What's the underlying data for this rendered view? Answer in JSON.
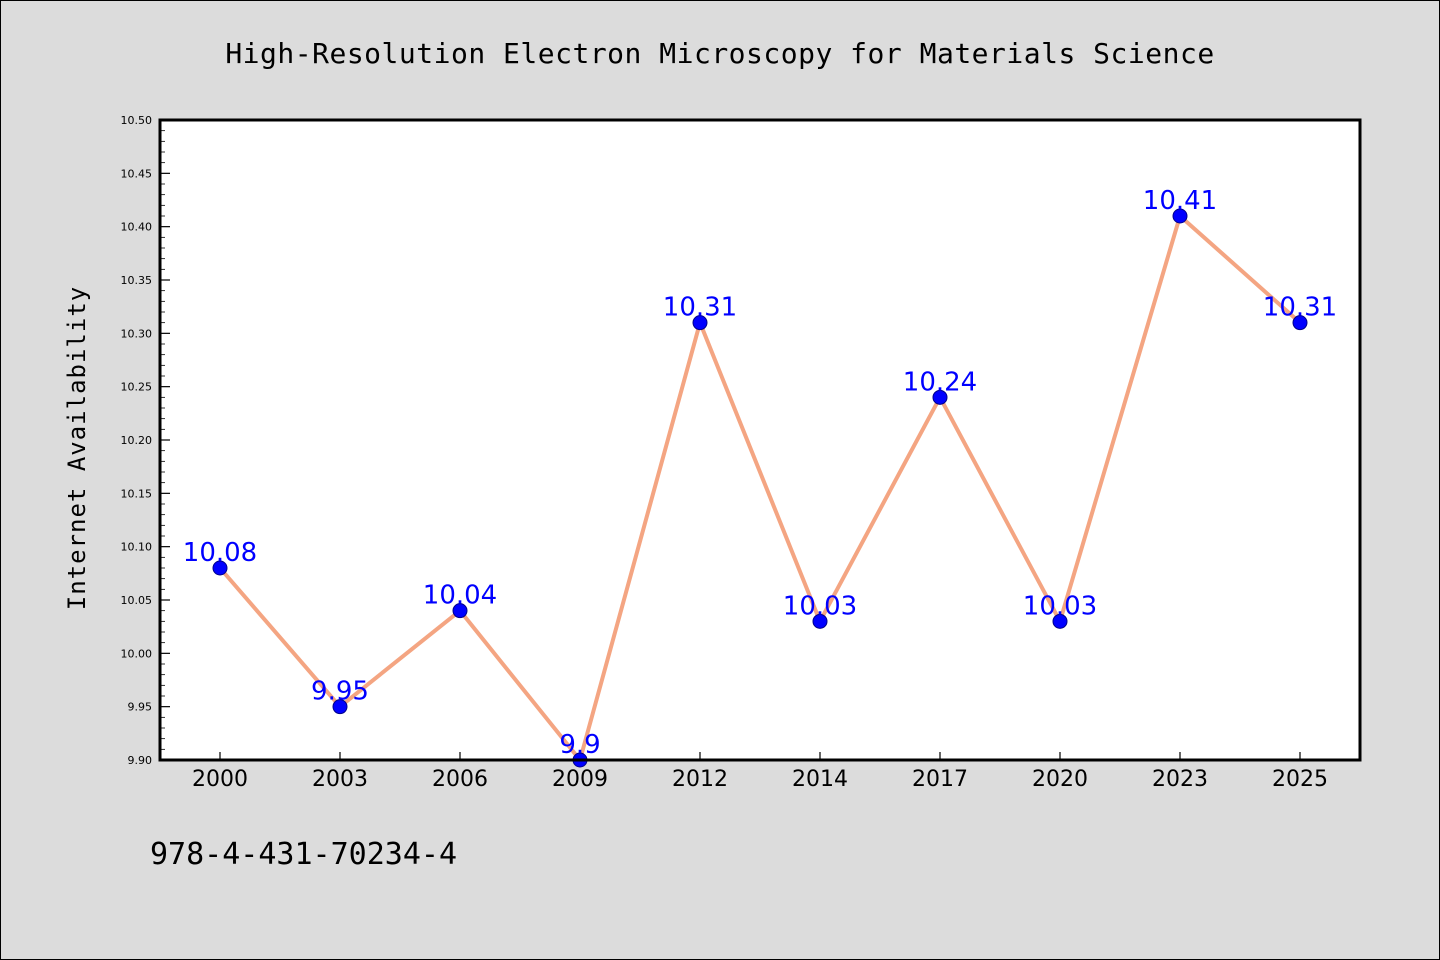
{
  "chart_data": {
    "type": "line",
    "title": "High-Resolution Electron Microscopy for Materials Science",
    "xlabel": "",
    "ylabel": "Internet Availability",
    "categories": [
      "2000",
      "2003",
      "2006",
      "2009",
      "2012",
      "2014",
      "2017",
      "2020",
      "2023",
      "2025"
    ],
    "series": [
      {
        "values": [
          10.08,
          9.95,
          10.04,
          9.9,
          10.31,
          10.03,
          10.24,
          10.03,
          10.41,
          10.31
        ],
        "data_labels": [
          "10.08",
          "9.95",
          "10.04",
          "9.9",
          "10.31",
          "10.03",
          "10.24",
          "10.03",
          "10.41",
          "10.31"
        ],
        "line_color": "#f4a582",
        "marker_color": "#0000ff"
      }
    ],
    "ylim": [
      9.9,
      10.5
    ],
    "yticks": [
      "9.90",
      "9.95",
      "10.00",
      "10.05",
      "10.10",
      "10.15",
      "10.20",
      "10.25",
      "10.30",
      "10.35",
      "10.40",
      "10.45",
      "10.50"
    ],
    "grid": false,
    "legend": "none"
  },
  "footer": {
    "isbn": "978-4-431-70234-4"
  },
  "colors": {
    "background": "#dcdcdc",
    "plot_background": "#ffffff",
    "line": "#f4a582",
    "marker": "#0000ff",
    "data_label": "#0000ff"
  }
}
